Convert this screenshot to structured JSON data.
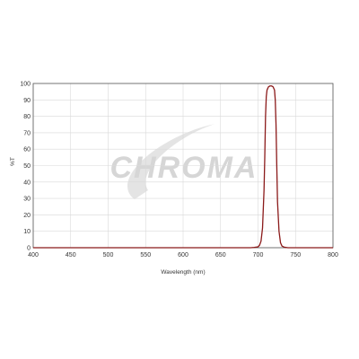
{
  "chart_data": {
    "type": "line",
    "title": "",
    "xlabel": "Wavelength (nm)",
    "ylabel": "%T",
    "xlim": [
      400,
      800
    ],
    "ylim": [
      0,
      100
    ],
    "xticks": [
      400,
      450,
      500,
      550,
      600,
      650,
      700,
      750,
      800
    ],
    "yticks": [
      0,
      10,
      20,
      30,
      40,
      50,
      60,
      70,
      80,
      90,
      100
    ],
    "grid": true,
    "watermark": "CHROMA",
    "series": [
      {
        "color": "#8b1a1a",
        "x": [
          400,
          650,
          690,
          695,
          700,
          702,
          704,
          706,
          708,
          709,
          710,
          711,
          712,
          714,
          716,
          718,
          720,
          722,
          723,
          724,
          725,
          726,
          728,
          730,
          732,
          735,
          740,
          750,
          800
        ],
        "y": [
          0,
          0,
          0,
          0.2,
          0.5,
          1.5,
          4,
          12,
          35,
          55,
          80,
          92,
          96,
          98,
          98.5,
          98.5,
          98,
          96,
          90,
          75,
          50,
          28,
          10,
          3,
          1,
          0.3,
          0,
          0,
          0
        ]
      }
    ]
  }
}
